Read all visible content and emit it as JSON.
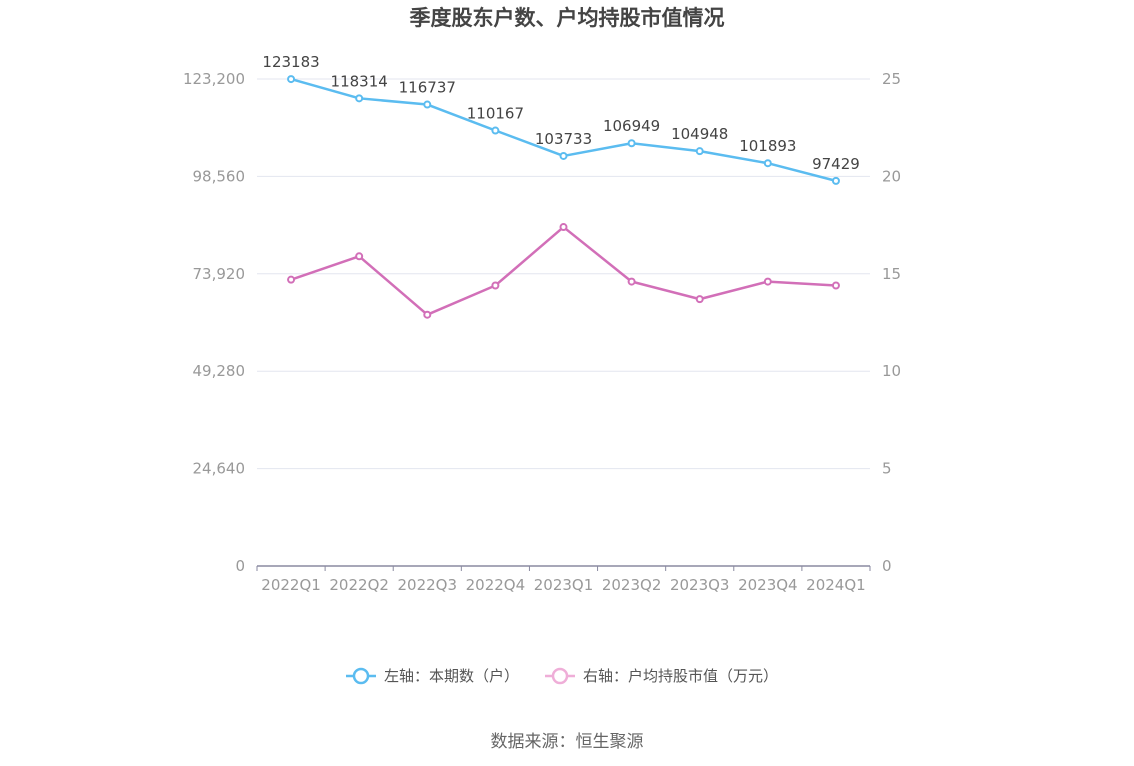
{
  "chart_data": {
    "type": "line",
    "title": "季度股东户数、户均持股市值情况",
    "categories": [
      "2022Q1",
      "2022Q2",
      "2022Q3",
      "2022Q4",
      "2023Q1",
      "2023Q2",
      "2023Q3",
      "2023Q4",
      "2024Q1"
    ],
    "series": [
      {
        "name": "左轴：本期数（户）",
        "axis": "left",
        "color": "#5bbcf0",
        "values": [
          123183,
          118314,
          116737,
          110167,
          103733,
          106949,
          104948,
          101893,
          97429
        ],
        "show_labels": true
      },
      {
        "name": "右轴：户均持股市值（万元）",
        "axis": "right",
        "color": "#d26fb8",
        "legend_color": "#efaed8",
        "values": [
          14.7,
          15.9,
          12.9,
          14.4,
          17.4,
          14.6,
          13.7,
          14.6,
          14.4
        ],
        "show_labels": false
      }
    ],
    "y_left": {
      "ylim": [
        0,
        123200
      ],
      "ticks": [
        0,
        24640,
        49280,
        73920,
        98560,
        123200
      ],
      "tick_labels": [
        "0",
        "24,640",
        "49,280",
        "73,920",
        "98,560",
        "123,200"
      ]
    },
    "y_right": {
      "ylim": [
        0,
        25
      ],
      "ticks": [
        0,
        5,
        10,
        15,
        20,
        25
      ],
      "tick_labels": [
        "0",
        "5",
        "10",
        "15",
        "20",
        "25"
      ]
    },
    "grid": true,
    "legend_position": "bottom"
  },
  "source_text": "数据来源：恒生聚源"
}
